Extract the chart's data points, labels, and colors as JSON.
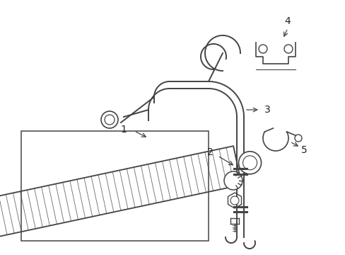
{
  "bg_color": "#ffffff",
  "line_color": "#444444",
  "label_color": "#222222",
  "label_fontsize": 10,
  "figsize": [
    4.89,
    3.6
  ],
  "dpi": 100
}
